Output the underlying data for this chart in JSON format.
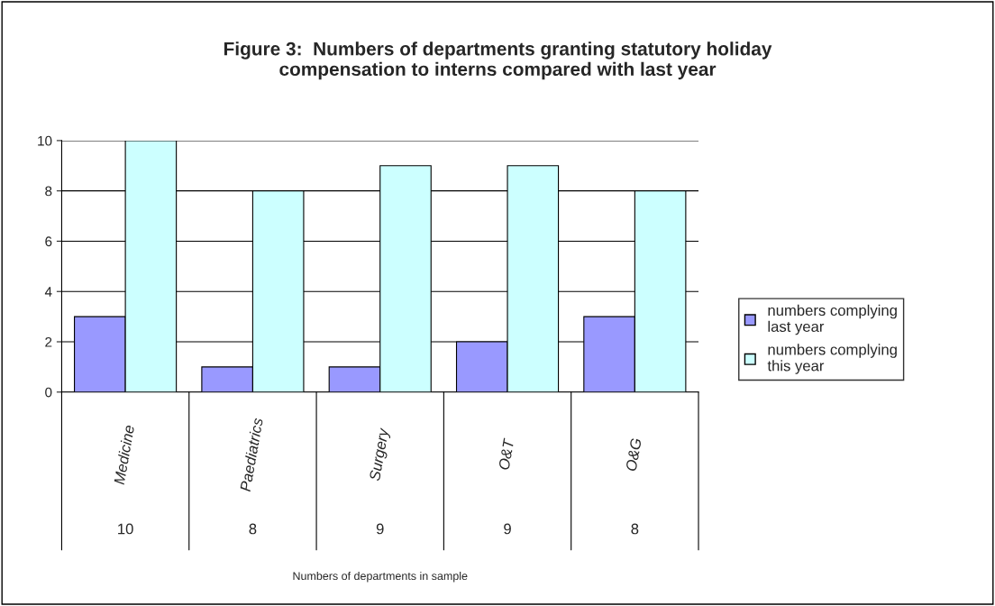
{
  "chart_data": {
    "type": "bar",
    "title": "Figure 3:  Numbers of departments granting statutory holiday\ncompensation to interns compared with last year",
    "categories": [
      "Medicine",
      "Paediatrics",
      "Surgery",
      "O&T",
      "O&G"
    ],
    "series": [
      {
        "name": "numbers complying\nlast year",
        "color": "#9999ff",
        "values": [
          3,
          1,
          1,
          2,
          3
        ]
      },
      {
        "name": "numbers complying\nthis year",
        "color": "#ccffff",
        "values": [
          10,
          8,
          9,
          9,
          8
        ]
      }
    ],
    "annotations": [
      "10",
      "8",
      "9",
      "9",
      "8",
      "Numbers of departments in sample"
    ],
    "ylim": [
      0,
      10
    ],
    "yticks": [
      0,
      2,
      4,
      6,
      8,
      10
    ],
    "grid": "y",
    "legend": "right"
  }
}
